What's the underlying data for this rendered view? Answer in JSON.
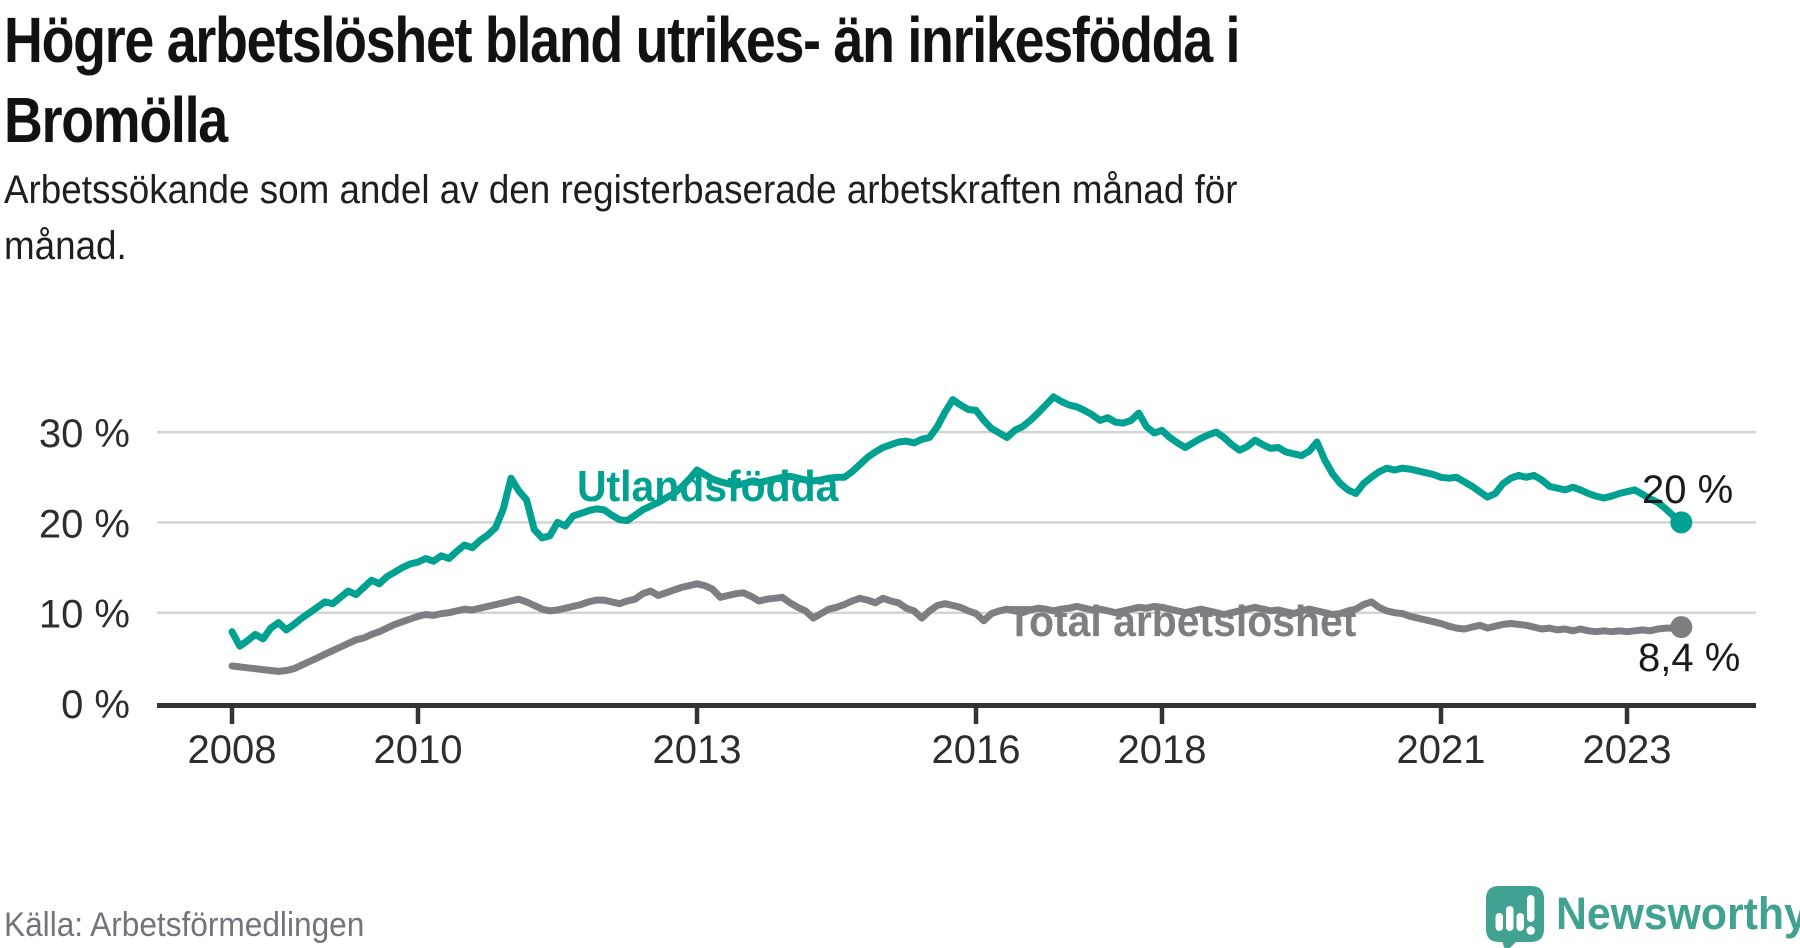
{
  "header": {
    "title_lines": [
      "Högre arbetslöshet bland utrikes- än inrikesfödda i",
      "Bromölla"
    ],
    "subtitle_lines": [
      "Arbetssökande som andel av den registerbaserade arbetskraften månad för",
      "månad."
    ]
  },
  "footer": {
    "source": "Källa: Arbetsförmedlingen",
    "brand": "Newsworthy"
  },
  "colors": {
    "teal_series": "#00A191",
    "gray_series": "#7E7E82",
    "end_label_text": "#1A1A1A",
    "gridline": "#D4D4D4",
    "axis": "#333333",
    "tick_label": "#2D2D2D",
    "title_text": "#121212",
    "source_text": "#73737B",
    "logo_teal": "#41A292"
  },
  "chart_data": {
    "type": "line",
    "title": "Högre arbetslöshet bland utrikes- än inrikesfödda i Bromölla",
    "subtitle": "Arbetssökande som andel av den registerbaserade arbetskraften månad för månad.",
    "x_interval": "monthly",
    "x_start": "2008-01",
    "x_end": "2023-08",
    "start_year": 2008,
    "xlabel": "",
    "ylabel": "",
    "ylim": [
      0,
      37
    ],
    "grid": "horizontal",
    "legend_position": "inline-labels",
    "x_ticks": [
      {
        "value": 2008,
        "label": "2008"
      },
      {
        "value": 2010,
        "label": "2010"
      },
      {
        "value": 2013,
        "label": "2013"
      },
      {
        "value": 2016,
        "label": "2016"
      },
      {
        "value": 2018,
        "label": "2018"
      },
      {
        "value": 2021,
        "label": "2021"
      },
      {
        "value": 2023,
        "label": "2023"
      }
    ],
    "y_ticks": [
      {
        "value": 0,
        "label": "0 %"
      },
      {
        "value": 10,
        "label": "10 %"
      },
      {
        "value": 20,
        "label": "20 %"
      },
      {
        "value": 30,
        "label": "30 %"
      }
    ],
    "series": [
      {
        "name": "Utlandsfödda",
        "color": "#00A191",
        "end_label": "20 %",
        "end_value": 20.0,
        "values": [
          7.9,
          6.3,
          6.9,
          7.6,
          7.1,
          8.3,
          8.9,
          8.1,
          8.7,
          9.4,
          10.0,
          10.6,
          11.2,
          11.0,
          11.7,
          12.4,
          12.0,
          12.8,
          13.6,
          13.2,
          14.0,
          14.5,
          15.0,
          15.4,
          15.6,
          16.0,
          15.7,
          16.3,
          16.0,
          16.8,
          17.5,
          17.2,
          18.0,
          18.6,
          19.4,
          21.5,
          24.9,
          23.5,
          22.5,
          19.2,
          18.3,
          18.5,
          20.0,
          19.6,
          20.7,
          21.0,
          21.3,
          21.5,
          21.4,
          20.8,
          20.3,
          20.2,
          20.8,
          21.4,
          21.8,
          22.2,
          22.7,
          23.2,
          23.9,
          24.8,
          25.8,
          25.3,
          24.8,
          24.5,
          24.3,
          24.1,
          24.3,
          24.5,
          24.4,
          24.6,
          24.8,
          25.0,
          25.1,
          24.9,
          24.7,
          24.6,
          24.7,
          24.9,
          25.0,
          25.0,
          25.6,
          26.4,
          27.2,
          27.8,
          28.3,
          28.6,
          28.9,
          29.0,
          28.8,
          29.2,
          29.4,
          30.6,
          32.2,
          33.6,
          33.0,
          32.5,
          32.4,
          31.3,
          30.4,
          29.9,
          29.4,
          30.2,
          30.6,
          31.3,
          32.1,
          33.0,
          33.9,
          33.4,
          33.0,
          32.8,
          32.4,
          31.9,
          31.3,
          31.6,
          31.1,
          31.0,
          31.3,
          32.1,
          30.6,
          29.9,
          30.2,
          29.4,
          28.8,
          28.3,
          28.8,
          29.3,
          29.7,
          30.0,
          29.4,
          28.6,
          28.0,
          28.4,
          29.1,
          28.6,
          28.2,
          28.3,
          27.8,
          27.6,
          27.4,
          27.9,
          28.9,
          26.9,
          25.4,
          24.3,
          23.6,
          23.2,
          24.3,
          25.0,
          25.6,
          26.0,
          25.8,
          26.0,
          25.9,
          25.7,
          25.5,
          25.3,
          25.0,
          24.9,
          25.0,
          24.5,
          24.0,
          23.4,
          22.8,
          23.2,
          24.3,
          24.9,
          25.2,
          25.0,
          25.2,
          24.7,
          24.0,
          23.8,
          23.6,
          23.9,
          23.6,
          23.2,
          22.9,
          22.7,
          22.9,
          23.2,
          23.4,
          23.6,
          23.1,
          22.6,
          22.2,
          21.5,
          20.7,
          20.0
        ]
      },
      {
        "name": "Total arbetslöshet",
        "color": "#7E7E82",
        "end_label": "8,4 %",
        "end_value": 8.4,
        "values": [
          4.1,
          4.0,
          3.9,
          3.8,
          3.7,
          3.6,
          3.5,
          3.6,
          3.8,
          4.2,
          4.6,
          5.0,
          5.4,
          5.8,
          6.2,
          6.6,
          7.0,
          7.2,
          7.6,
          7.9,
          8.3,
          8.7,
          9.0,
          9.3,
          9.6,
          9.8,
          9.7,
          9.9,
          10.0,
          10.2,
          10.4,
          10.3,
          10.5,
          10.7,
          10.9,
          11.1,
          11.3,
          11.5,
          11.2,
          10.8,
          10.4,
          10.2,
          10.3,
          10.5,
          10.7,
          10.9,
          11.2,
          11.4,
          11.4,
          11.2,
          11.0,
          11.3,
          11.5,
          12.1,
          12.4,
          11.9,
          12.2,
          12.5,
          12.8,
          13.0,
          13.2,
          13.0,
          12.6,
          11.7,
          11.9,
          12.1,
          12.2,
          11.8,
          11.3,
          11.5,
          11.6,
          11.7,
          11.1,
          10.6,
          10.2,
          9.4,
          9.9,
          10.4,
          10.6,
          10.9,
          11.3,
          11.6,
          11.4,
          11.1,
          11.6,
          11.3,
          11.1,
          10.5,
          10.2,
          9.4,
          10.2,
          10.8,
          11.0,
          10.8,
          10.6,
          10.2,
          9.9,
          9.1,
          9.9,
          10.2,
          10.4,
          10.2,
          10.0,
          10.3,
          10.5,
          10.4,
          10.2,
          10.4,
          10.5,
          10.7,
          10.5,
          10.3,
          10.4,
          10.2,
          10.0,
          10.2,
          10.4,
          10.6,
          10.5,
          10.7,
          10.6,
          10.4,
          10.2,
          10.0,
          10.2,
          10.4,
          10.2,
          10.0,
          9.8,
          10.0,
          10.2,
          10.4,
          10.6,
          10.4,
          10.2,
          10.3,
          10.1,
          9.9,
          10.2,
          10.4,
          10.2,
          10.0,
          9.8,
          9.9,
          10.2,
          10.4,
          10.9,
          11.2,
          10.6,
          10.2,
          10.0,
          9.9,
          9.6,
          9.4,
          9.2,
          9.0,
          8.8,
          8.5,
          8.3,
          8.2,
          8.4,
          8.6,
          8.3,
          8.5,
          8.7,
          8.8,
          8.7,
          8.6,
          8.4,
          8.2,
          8.3,
          8.1,
          8.2,
          8.0,
          8.2,
          8.0,
          7.9,
          8.0,
          7.9,
          8.0,
          7.9,
          8.0,
          8.1,
          8.0,
          8.2,
          8.3,
          8.3,
          8.4
        ]
      }
    ]
  }
}
